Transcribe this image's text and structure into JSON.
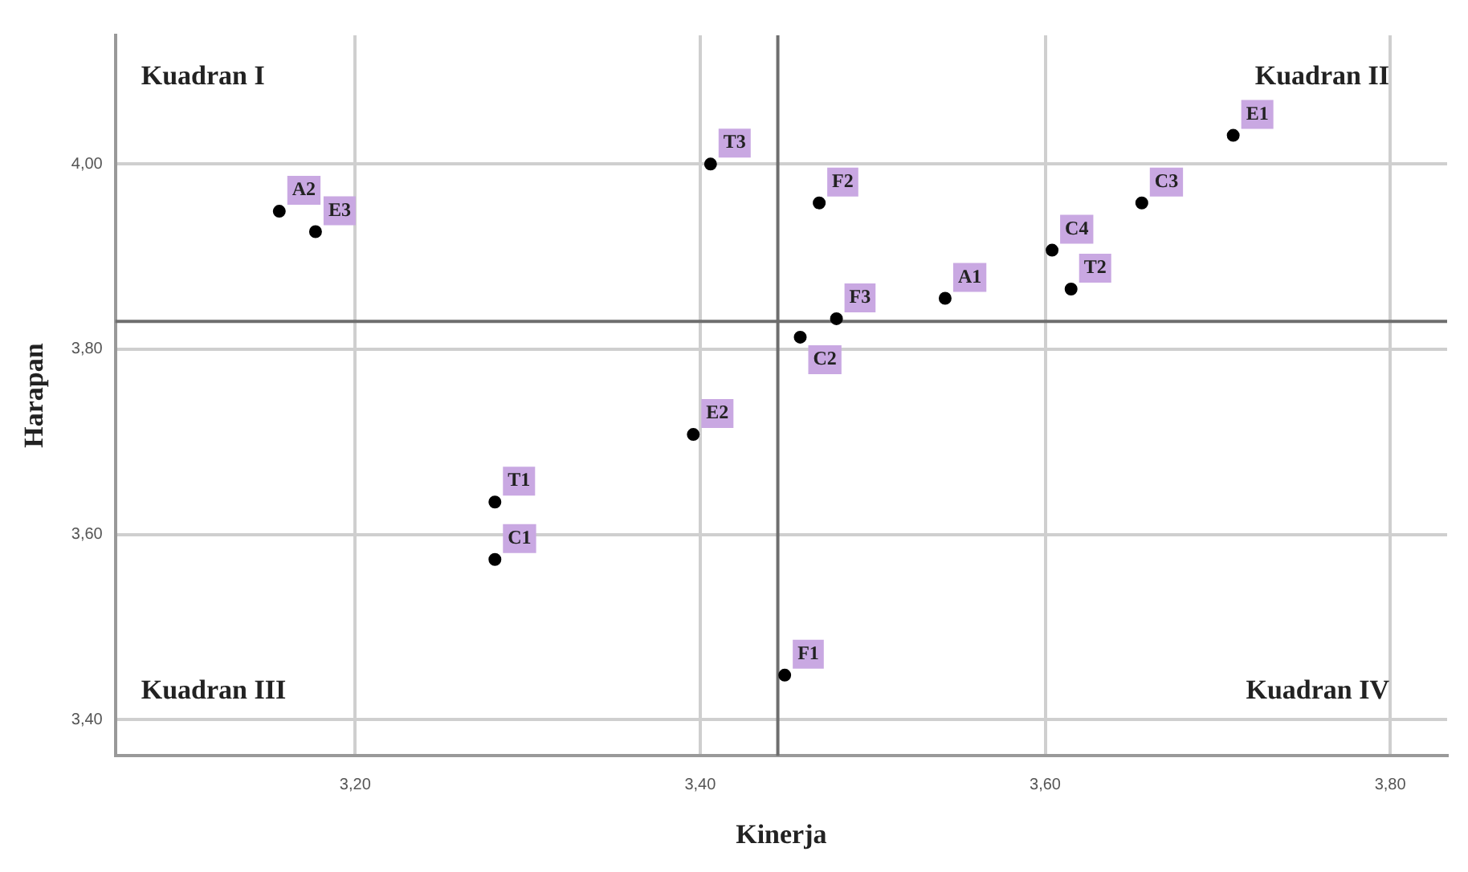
{
  "chart_data": {
    "type": "scatter",
    "xlabel": "Kinerja",
    "ylabel": "Harapan",
    "x": [
      3.156,
      3.177,
      3.406,
      3.396,
      3.281,
      3.281,
      3.449,
      3.469,
      3.479,
      3.458,
      3.542,
      3.604,
      3.615,
      3.656,
      3.709
    ],
    "values": [
      3.949,
      3.927,
      4.0,
      3.708,
      3.635,
      3.573,
      3.448,
      3.958,
      3.833,
      3.813,
      3.855,
      3.907,
      3.865,
      3.958,
      4.031
    ],
    "color": "#000000",
    "marker": "circle",
    "grid": true,
    "xlim": [
      3.061,
      3.833
    ],
    "ylim": [
      3.361,
      4.139
    ],
    "xticks": [
      {
        "value": 3.2,
        "label": "3,20"
      },
      {
        "value": 3.4,
        "label": "3,40"
      },
      {
        "value": 3.6,
        "label": "3,60"
      },
      {
        "value": 3.8,
        "label": "3,80"
      }
    ],
    "yticks": [
      {
        "value": 3.4,
        "label": "3,40"
      },
      {
        "value": 3.6,
        "label": "3,60"
      },
      {
        "value": 3.8,
        "label": "3,80"
      },
      {
        "value": 4.0,
        "label": "4,00"
      }
    ],
    "ref_lines": [
      {
        "axis": "x",
        "value": 3.445,
        "color": "#6e6e6e"
      },
      {
        "axis": "y",
        "value": 3.83,
        "color": "#6e6e6e"
      }
    ],
    "annotations": [
      "Kuadran I",
      "Kuadran II",
      "Kuadran III",
      "Kuadran IV",
      {
        "text": "A2",
        "x": 3.156,
        "y": 3.949
      },
      {
        "text": "E3",
        "x": 3.177,
        "y": 3.927
      },
      {
        "text": "T3",
        "x": 3.406,
        "y": 4.0
      },
      {
        "text": "E2",
        "x": 3.396,
        "y": 3.708
      },
      {
        "text": "T1",
        "x": 3.281,
        "y": 3.635
      },
      {
        "text": "C1",
        "x": 3.281,
        "y": 3.573
      },
      {
        "text": "F1",
        "x": 3.449,
        "y": 3.448
      },
      {
        "text": "F2",
        "x": 3.469,
        "y": 3.958
      },
      {
        "text": "F3",
        "x": 3.479,
        "y": 3.833
      },
      {
        "text": "C2",
        "x": 3.458,
        "y": 3.813
      },
      {
        "text": "A1",
        "x": 3.542,
        "y": 3.855
      },
      {
        "text": "C4",
        "x": 3.604,
        "y": 3.907
      },
      {
        "text": "T2",
        "x": 3.615,
        "y": 3.865
      },
      {
        "text": "C3",
        "x": 3.656,
        "y": 3.958
      },
      {
        "text": "E1",
        "x": 3.709,
        "y": 4.031
      }
    ]
  }
}
